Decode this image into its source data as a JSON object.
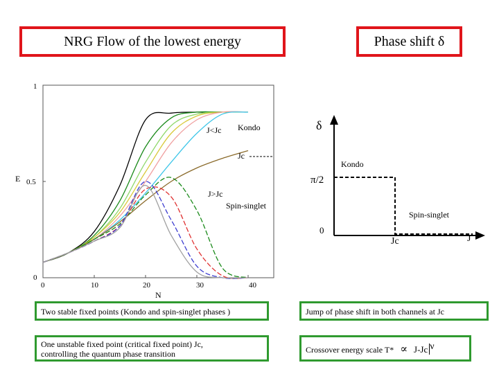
{
  "titles": {
    "left": "NRG Flow of the lowest energy",
    "right": "Phase shift δ"
  },
  "colors": {
    "title_border": "#e0151b",
    "box_border": "#2f9a2f"
  },
  "nrg_plot": {
    "ylabel": "E",
    "xlabel": "N",
    "y_tick_labels": [
      "1",
      "0.5",
      "0"
    ],
    "x_tick_labels": [
      "0",
      "10",
      "20",
      "30",
      "40"
    ],
    "annotations": {
      "j_less": "J<Jc",
      "kondo": "Kondo",
      "jc": "Jc",
      "j_greater": "J>Jc",
      "spin_singlet": "Spin-singlet"
    }
  },
  "chart_data": {
    "type": "line",
    "title": "NRG Flow of the lowest energy",
    "xlabel": "N",
    "ylabel": "E",
    "xlim": [
      0,
      45
    ],
    "ylim": [
      0,
      1
    ],
    "x": [
      0,
      5,
      10,
      15,
      20,
      25,
      30,
      35,
      40
    ],
    "series": [
      {
        "name": "J<Jc 1",
        "color": "#000000",
        "dash": "",
        "values": [
          0.08,
          0.13,
          0.24,
          0.48,
          0.82,
          0.855,
          0.86,
          0.86,
          0.86
        ]
      },
      {
        "name": "J<Jc 2",
        "color": "#1a8a1a",
        "dash": "",
        "values": [
          0.08,
          0.13,
          0.22,
          0.4,
          0.68,
          0.83,
          0.86,
          0.86,
          0.86
        ]
      },
      {
        "name": "J<Jc 3",
        "color": "#8fd86a",
        "dash": "",
        "values": [
          0.08,
          0.13,
          0.21,
          0.36,
          0.6,
          0.79,
          0.85,
          0.86,
          0.86
        ]
      },
      {
        "name": "J<Jc 4",
        "color": "#d9c93a",
        "dash": "",
        "values": [
          0.08,
          0.13,
          0.21,
          0.34,
          0.55,
          0.75,
          0.84,
          0.86,
          0.86
        ]
      },
      {
        "name": "J<Jc 5",
        "color": "#f0a0a0",
        "dash": "",
        "values": [
          0.08,
          0.13,
          0.2,
          0.32,
          0.5,
          0.7,
          0.82,
          0.86,
          0.86
        ]
      },
      {
        "name": "J<Jc 6",
        "color": "#3ec6e8",
        "dash": "",
        "values": [
          0.08,
          0.13,
          0.2,
          0.3,
          0.44,
          0.6,
          0.75,
          0.85,
          0.86
        ]
      },
      {
        "name": "Jc",
        "color": "#8a6a2a",
        "dash": "",
        "values": [
          0.08,
          0.13,
          0.2,
          0.29,
          0.4,
          0.5,
          0.57,
          0.62,
          0.66
        ]
      },
      {
        "name": "J>Jc 1",
        "color": "#1a8a1a",
        "dash": "7,3",
        "values": [
          0.08,
          0.13,
          0.2,
          0.28,
          0.43,
          0.52,
          0.35,
          0.05,
          0.0
        ]
      },
      {
        "name": "J>Jc 2",
        "color": "#e03030",
        "dash": "7,3",
        "values": [
          0.08,
          0.13,
          0.19,
          0.27,
          0.46,
          0.42,
          0.15,
          0.01,
          0.0
        ]
      },
      {
        "name": "J>Jc 3",
        "color": "#3b3bcf",
        "dash": "7,3",
        "values": [
          0.08,
          0.13,
          0.19,
          0.27,
          0.5,
          0.3,
          0.06,
          0.0,
          0.0
        ]
      },
      {
        "name": "J>Jc 4",
        "color": "#a0a0a0",
        "dash": "",
        "values": [
          0.08,
          0.13,
          0.19,
          0.26,
          0.48,
          0.22,
          0.03,
          0.0,
          0.0
        ]
      }
    ]
  },
  "phase_plot": {
    "y_symbol": "δ",
    "pi_half": "π/2",
    "zero": "0",
    "kondo": "Kondo",
    "spin_singlet": "Spin-singlet",
    "jc_label": "Jc",
    "j_label": "J",
    "step_levels": {
      "before_jc": 0.5,
      "after_jc": 0.0
    }
  },
  "boxes": {
    "two_stable": "Two stable fixed points (Kondo and spin-singlet phases )",
    "one_unstable_line1": "One unstable fixed point (critical fixed point) Jc,",
    "one_unstable_line2": "controlling the quantum phase transition",
    "jump": "Jump of phase shift in both channels at Jc",
    "crossover_prefix": "Crossover energy scale T*",
    "proportional": "∝",
    "crossover_formula": "J-Jc",
    "exponent": "ν"
  }
}
